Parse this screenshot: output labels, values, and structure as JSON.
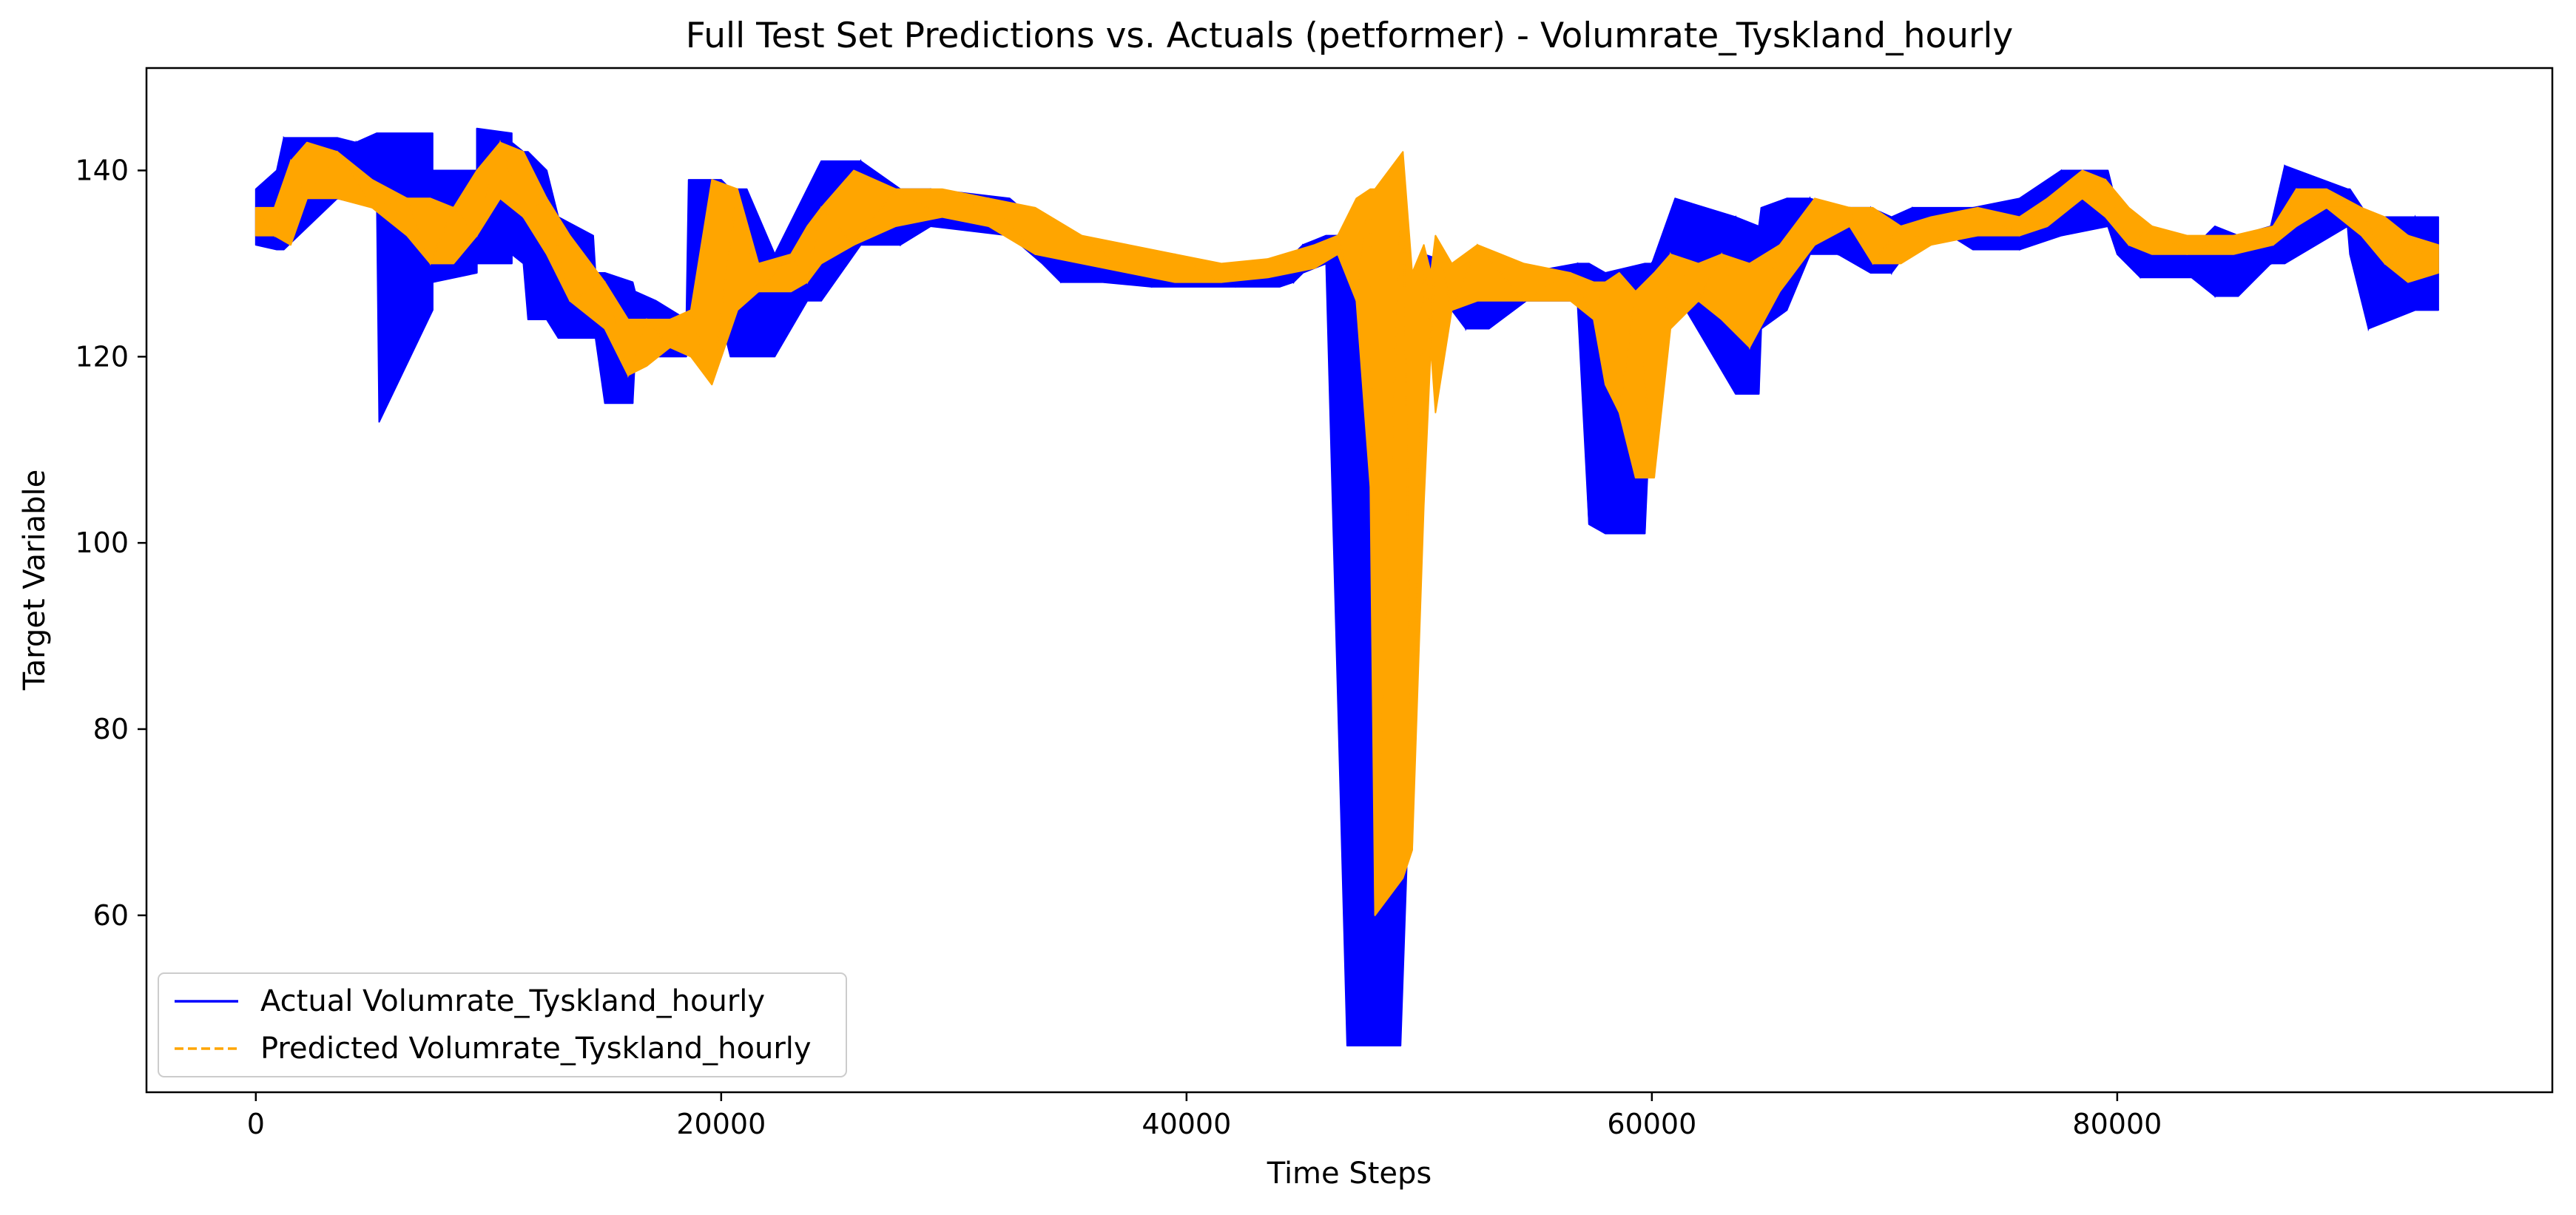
{
  "chart_data": {
    "type": "line",
    "title": "Full Test Set Predictions vs. Actuals (petformer) - Volumrate_Tyskland_hourly",
    "xlabel": "Time Steps",
    "ylabel": "Target Variable",
    "xlim": [
      -4700,
      98700
    ],
    "ylim": [
      41,
      151
    ],
    "xticks": [
      0,
      20000,
      40000,
      60000,
      80000
    ],
    "xtick_labels": [
      "0",
      "20000",
      "40000",
      "60000",
      "80000"
    ],
    "yticks": [
      60,
      80,
      100,
      120,
      140
    ],
    "ytick_labels": [
      "60",
      "80",
      "100",
      "120",
      "140"
    ],
    "grid": false,
    "legend_position": "lower-left",
    "series": [
      {
        "name": "Actual Volumrate_Tyskland_hourly",
        "color": "#0000ff",
        "style": "solid",
        "band": [
          [
            0,
            132,
            138
          ],
          [
            900,
            131.5,
            140
          ],
          [
            1200,
            131.5,
            143.5
          ],
          [
            3500,
            137,
            143.5
          ],
          [
            4300,
            136.5,
            143
          ],
          [
            5200,
            136,
            144
          ],
          [
            5300,
            113,
            144
          ],
          [
            7600,
            125,
            144
          ],
          [
            7600,
            128,
            140
          ],
          [
            9500,
            129,
            140
          ],
          [
            9500,
            130,
            144.5
          ],
          [
            11000,
            130,
            144
          ],
          [
            11000,
            131,
            143
          ],
          [
            11500,
            130,
            142
          ],
          [
            11700,
            124,
            142
          ],
          [
            12100,
            124,
            141
          ],
          [
            12500,
            124,
            140
          ],
          [
            13000,
            122,
            135
          ],
          [
            14500,
            122,
            133
          ],
          [
            14600,
            122,
            129
          ],
          [
            15000,
            115,
            129
          ],
          [
            16200,
            115,
            128
          ],
          [
            16300,
            120,
            127
          ],
          [
            17200,
            120,
            126
          ],
          [
            18500,
            120,
            124
          ],
          [
            18600,
            122,
            139
          ],
          [
            20000,
            124,
            139
          ],
          [
            20400,
            120,
            138
          ],
          [
            21100,
            120,
            138
          ],
          [
            22300,
            120,
            131
          ],
          [
            23700,
            126,
            138
          ],
          [
            24300,
            126,
            141
          ],
          [
            26000,
            132,
            141
          ],
          [
            27700,
            132,
            138
          ],
          [
            29000,
            134,
            138
          ],
          [
            32400,
            133,
            137
          ],
          [
            33800,
            130,
            134
          ],
          [
            34600,
            128,
            132
          ],
          [
            36400,
            128,
            131.5
          ],
          [
            38500,
            127.5,
            130.5
          ],
          [
            40200,
            127.5,
            130
          ],
          [
            42100,
            127.5,
            129.5
          ],
          [
            44000,
            127.5,
            130.5
          ],
          [
            44600,
            128,
            131
          ],
          [
            45000,
            129,
            132
          ],
          [
            46000,
            130,
            133
          ],
          [
            46900,
            46,
            133
          ],
          [
            49000,
            46,
            133
          ],
          [
            49200,
            46,
            125
          ],
          [
            50200,
            119,
            131
          ],
          [
            51400,
            125,
            130
          ],
          [
            52000,
            123,
            130
          ],
          [
            53000,
            123,
            129
          ],
          [
            54600,
            126,
            129
          ],
          [
            56800,
            126,
            130
          ],
          [
            57300,
            102,
            130
          ],
          [
            58000,
            101,
            129
          ],
          [
            59700,
            101,
            130
          ],
          [
            60000,
            118,
            130
          ],
          [
            61000,
            127,
            137
          ],
          [
            63600,
            116,
            135
          ],
          [
            64600,
            116,
            134
          ],
          [
            64700,
            123,
            136
          ],
          [
            65800,
            125,
            137
          ],
          [
            66800,
            131,
            137
          ],
          [
            68000,
            131,
            136
          ],
          [
            69400,
            129,
            136
          ],
          [
            70300,
            129,
            135
          ],
          [
            71200,
            132,
            136
          ],
          [
            72200,
            134,
            136
          ],
          [
            73800,
            131.5,
            136
          ],
          [
            75800,
            131.5,
            137
          ],
          [
            77600,
            133,
            140
          ],
          [
            79600,
            134,
            140
          ],
          [
            80000,
            131,
            136
          ],
          [
            81000,
            128.5,
            133
          ],
          [
            83200,
            128.5,
            131.5
          ],
          [
            84200,
            126.5,
            134
          ],
          [
            85200,
            126.5,
            133
          ],
          [
            86600,
            130,
            134
          ],
          [
            87200,
            130,
            140.5
          ],
          [
            89900,
            134,
            138
          ],
          [
            90000,
            131,
            138
          ],
          [
            90800,
            123,
            135
          ],
          [
            92800,
            125,
            135
          ],
          [
            93800,
            125,
            135
          ]
        ]
      },
      {
        "name": "Predicted Volumrate_Tyskland_hourly",
        "color": "#ffa500",
        "style": "dashed",
        "band": [
          [
            0,
            133,
            136
          ],
          [
            800,
            133,
            136
          ],
          [
            1500,
            132,
            141
          ],
          [
            2200,
            137,
            143
          ],
          [
            3500,
            137,
            142
          ],
          [
            5000,
            136,
            139
          ],
          [
            6500,
            133,
            137
          ],
          [
            7500,
            130,
            137
          ],
          [
            8500,
            130,
            136
          ],
          [
            9500,
            133,
            140
          ],
          [
            10500,
            137,
            143
          ],
          [
            11500,
            135,
            142
          ],
          [
            12500,
            131,
            137
          ],
          [
            13500,
            126,
            133
          ],
          [
            15000,
            123,
            128
          ],
          [
            16000,
            118,
            124
          ],
          [
            16800,
            119,
            124
          ],
          [
            17800,
            121,
            124
          ],
          [
            18700,
            120,
            125
          ],
          [
            19600,
            117,
            139
          ],
          [
            20700,
            125,
            138
          ],
          [
            21600,
            127,
            130
          ],
          [
            23000,
            127,
            131
          ],
          [
            23700,
            128,
            134
          ],
          [
            24300,
            130,
            136
          ],
          [
            25700,
            132,
            140
          ],
          [
            27500,
            134,
            138
          ],
          [
            29500,
            135,
            138
          ],
          [
            31500,
            134,
            137
          ],
          [
            33500,
            131,
            136
          ],
          [
            35500,
            130,
            133
          ],
          [
            37500,
            129,
            132
          ],
          [
            39500,
            128,
            131
          ],
          [
            41500,
            128,
            130
          ],
          [
            43500,
            128.5,
            130.5
          ],
          [
            45500,
            129.5,
            132
          ],
          [
            46500,
            131,
            133
          ],
          [
            47300,
            126,
            137
          ],
          [
            47900,
            106,
            138
          ],
          [
            48100,
            60,
            138
          ],
          [
            49300,
            64,
            142
          ],
          [
            49700,
            67,
            129
          ],
          [
            50200,
            104,
            132
          ],
          [
            50500,
            121,
            129
          ],
          [
            50700,
            114,
            133
          ],
          [
            51400,
            125,
            130
          ],
          [
            52500,
            126,
            132
          ],
          [
            54500,
            126,
            130
          ],
          [
            56500,
            126,
            129
          ],
          [
            57500,
            124,
            128
          ],
          [
            58000,
            117,
            128
          ],
          [
            58600,
            114,
            129
          ],
          [
            59300,
            107,
            127
          ],
          [
            60100,
            107,
            129
          ],
          [
            60800,
            123,
            131
          ],
          [
            62000,
            126,
            130
          ],
          [
            63000,
            124,
            131
          ],
          [
            64200,
            121,
            130
          ],
          [
            65500,
            127,
            132
          ],
          [
            67000,
            132,
            137
          ],
          [
            68500,
            134,
            136
          ],
          [
            69500,
            130,
            136
          ],
          [
            70700,
            130,
            134
          ],
          [
            72000,
            132,
            135
          ],
          [
            74000,
            133,
            136
          ],
          [
            75800,
            133,
            135
          ],
          [
            77000,
            134,
            137
          ],
          [
            78500,
            137,
            140
          ],
          [
            79500,
            135,
            139
          ],
          [
            80500,
            132,
            136
          ],
          [
            81500,
            131,
            134
          ],
          [
            83000,
            131,
            133
          ],
          [
            85000,
            131,
            133
          ],
          [
            86700,
            132,
            134
          ],
          [
            87700,
            134,
            138
          ],
          [
            89000,
            136,
            138
          ],
          [
            90500,
            133,
            136
          ],
          [
            91500,
            130,
            135
          ],
          [
            92500,
            128,
            133
          ],
          [
            93800,
            129,
            132
          ]
        ]
      }
    ]
  }
}
